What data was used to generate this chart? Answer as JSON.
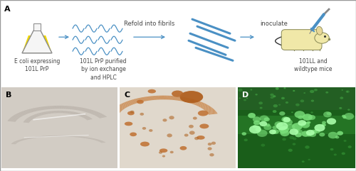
{
  "fig_width": 5.0,
  "fig_height": 2.41,
  "dpi": 100,
  "border_color": "#aaaaaa",
  "panel_A_label": "A",
  "panel_B_label": "B",
  "panel_C_label": "C",
  "panel_D_label": "D",
  "label_color": "#000000",
  "label_fontsize": 7,
  "arrow_color": "#4a90c4",
  "text_color": "#444444",
  "text_fontsize": 5.5,
  "texts": {
    "ecoli": "E coli expressing\n101L PrP",
    "purified": "101L PrP purified\nby ion exchange\nand HPLC",
    "refold": "Refold into fibrils",
    "inoculate": "inoculate",
    "mice": "101LL and\nwildtype mice"
  },
  "panel_A_bg": "#ffffff",
  "panel_B_bg": "#ccc5bc",
  "panel_C_bg": "#e8ddd0",
  "panel_D_bg": "#1a5e1a",
  "outer_border_color": "#999999",
  "squiggle_color": "#4a90c4",
  "fibril_color": "#4a90c4",
  "fibril_lw": 2.2,
  "fibril_lines": [
    [
      0.0,
      0.75,
      0.55,
      0.42
    ],
    [
      0.12,
      0.55,
      0.67,
      0.22
    ],
    [
      0.15,
      0.35,
      0.7,
      0.02
    ],
    [
      -0.15,
      0.45,
      0.4,
      0.12
    ],
    [
      0.0,
      0.25,
      0.55,
      -0.08
    ]
  ],
  "plaque_B_bg": "#ccc5bc",
  "plaque_C_orange": "#c07030",
  "green_D_dark": "#1a5e1a",
  "green_D_mid": "#2d8a2d",
  "green_D_bright": "#5ecf5e"
}
